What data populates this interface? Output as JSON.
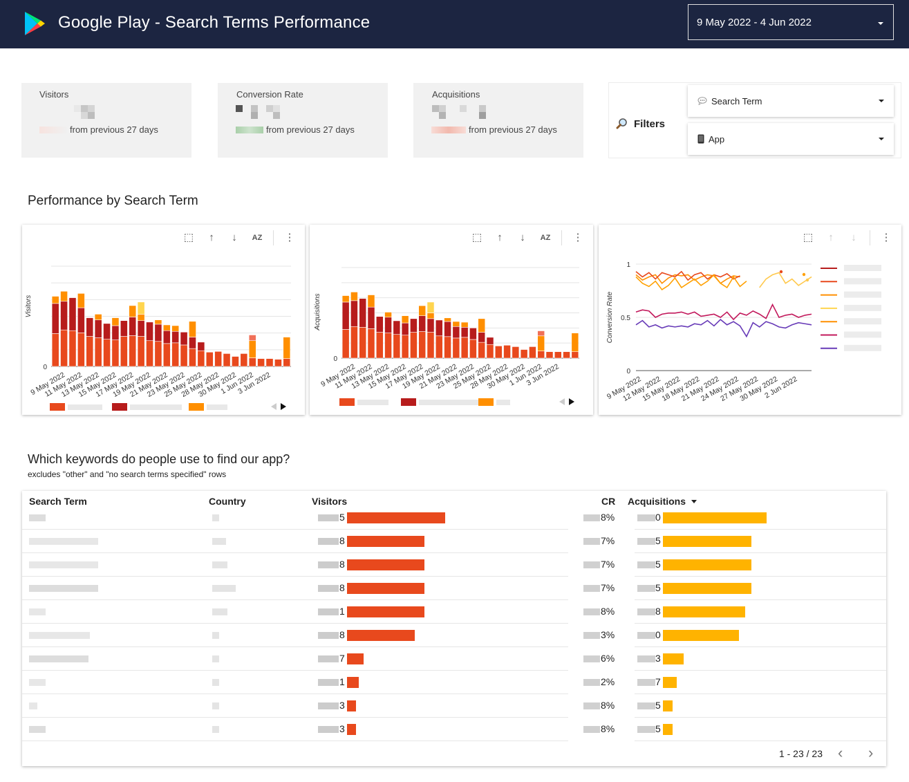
{
  "header": {
    "title": "Google Play - Search Terms Performance",
    "date_range": "9 May 2022 - 4 Jun 2022"
  },
  "kpis": [
    {
      "label": "Visitors",
      "delta_text": "from previous 27 days"
    },
    {
      "label": "Conversion Rate",
      "delta_text": "from previous 27 days"
    },
    {
      "label": "Acquisitions",
      "delta_text": "from previous 27 days"
    }
  ],
  "filters": {
    "label": "Filters",
    "search_term": "Search Term",
    "app": "App"
  },
  "section1": {
    "title": "Performance by Search Term"
  },
  "section2": {
    "title": "Which keywords do people use to find our app?",
    "subtitle": "excludes \"other\" and \"no search terms specified\" rows"
  },
  "colors": {
    "s1": "#e8491d",
    "s2": "#b71c1c",
    "s3": "#ff8f00",
    "s4": "#ffd54f",
    "s5": "#f07058",
    "visitors_bar": "#e8491d",
    "acq_bar": "#ffb300",
    "header_bg": "#1c2541"
  },
  "chart_data": [
    {
      "type": "bar",
      "stacked": true,
      "ylabel": "Visitors",
      "x_tick_labels": [
        "9 May 2022",
        "11 May 2022",
        "13 May 2022",
        "15 May 2022",
        "17 May 2022",
        "19 May 2022",
        "21 May 2022",
        "23 May 2022",
        "25 May 2022",
        "28 May 2022",
        "30 May 2022",
        "1 Jun 2022",
        "3 Jun 2022"
      ],
      "y_tick_labels": [
        "0"
      ],
      "series": [
        {
          "values": [
            46,
            51,
            50,
            47,
            42,
            40,
            38,
            37,
            42,
            43,
            42,
            36,
            35,
            32,
            33,
            30,
            25,
            22,
            20,
            21,
            18,
            14,
            18,
            12,
            11,
            11,
            10,
            11
          ]
        },
        {
          "values": [
            42,
            40,
            46,
            35,
            26,
            25,
            22,
            20,
            22,
            26,
            22,
            26,
            24,
            18,
            16,
            18,
            16,
            12,
            0,
            0,
            0,
            0,
            0,
            0,
            0,
            0,
            0,
            0
          ]
        },
        {
          "values": [
            10,
            14,
            0,
            20,
            0,
            8,
            0,
            11,
            0,
            16,
            9,
            0,
            6,
            8,
            8,
            0,
            22,
            0,
            0,
            0,
            0,
            0,
            0,
            24,
            0,
            0,
            0,
            30
          ]
        },
        {
          "values": [
            0,
            0,
            0,
            0,
            0,
            0,
            0,
            0,
            0,
            0,
            17,
            0,
            0,
            0,
            0,
            0,
            0,
            0,
            0,
            0,
            0,
            0,
            0,
            0,
            0,
            0,
            0,
            0
          ]
        },
        {
          "values": [
            0,
            0,
            0,
            0,
            0,
            0,
            0,
            0,
            0,
            0,
            0,
            0,
            0,
            0,
            0,
            0,
            0,
            0,
            0,
            0,
            0,
            0,
            0,
            8,
            0,
            0,
            0,
            0
          ]
        }
      ]
    },
    {
      "type": "bar",
      "stacked": true,
      "ylabel": "Acquisitions",
      "x_tick_labels": [
        "9 May 2022",
        "11 May 2022",
        "13 May 2022",
        "15 May 2022",
        "17 May 2022",
        "19 May 2022",
        "21 May 2022",
        "23 May 2022",
        "25 May 2022",
        "28 May 2022",
        "30 May 2022",
        "1 Jun 2022",
        "3 Jun 2022"
      ],
      "y_tick_labels": [
        "0"
      ],
      "series": [
        {
          "values": [
            40,
            44,
            43,
            41,
            36,
            35,
            33,
            32,
            36,
            37,
            36,
            31,
            30,
            28,
            29,
            26,
            22,
            19,
            17,
            18,
            16,
            12,
            16,
            10,
            9,
            9,
            9,
            9
          ]
        },
        {
          "values": [
            38,
            36,
            40,
            30,
            22,
            22,
            19,
            17,
            19,
            22,
            19,
            22,
            21,
            16,
            14,
            16,
            14,
            10,
            0,
            0,
            0,
            0,
            0,
            0,
            0,
            0,
            0,
            0
          ]
        },
        {
          "values": [
            9,
            12,
            0,
            17,
            0,
            7,
            0,
            10,
            0,
            14,
            8,
            0,
            5,
            7,
            7,
            0,
            19,
            0,
            0,
            0,
            0,
            0,
            0,
            21,
            0,
            0,
            0,
            26
          ]
        },
        {
          "values": [
            0,
            0,
            0,
            0,
            0,
            0,
            0,
            0,
            0,
            0,
            15,
            0,
            0,
            0,
            0,
            0,
            0,
            0,
            0,
            0,
            0,
            0,
            0,
            0,
            0,
            0,
            0,
            0
          ]
        },
        {
          "values": [
            0,
            0,
            0,
            0,
            0,
            0,
            0,
            0,
            0,
            0,
            0,
            0,
            0,
            0,
            0,
            0,
            0,
            0,
            0,
            0,
            0,
            0,
            0,
            7,
            0,
            0,
            0,
            0
          ]
        }
      ]
    },
    {
      "type": "line",
      "ylabel": "Conversion Rate",
      "x_tick_labels": [
        "9 May 2022",
        "12 May 2022",
        "15 May 2022",
        "18 May 2022",
        "21 May 2022",
        "24 May 2022",
        "27 May 2022",
        "30 May 2022",
        "2 Jun 2022"
      ],
      "y_tick_labels": [
        "1",
        "0.5",
        "0"
      ],
      "ylim": [
        0,
        1
      ],
      "series": [
        {
          "values": [
            0.9,
            0.85,
            0.88,
            0.9,
            0.82,
            0.87,
            0.9,
            0.89,
            0.9,
            0.85,
            0.88,
            0.9,
            0.89,
            0.82,
            0.86,
            0.89,
            0.88,
            null,
            null,
            null,
            null,
            null,
            null,
            null,
            null,
            null,
            null,
            null
          ]
        },
        {
          "values": [
            0.93,
            0.88,
            0.92,
            0.86,
            0.92,
            0.9,
            0.88,
            0.93,
            0.85,
            0.9,
            0.92,
            0.86,
            0.9,
            0.88,
            0.91,
            0.86,
            0.89,
            null,
            null,
            null,
            null,
            null,
            null,
            null,
            null,
            null,
            null,
            null
          ]
        },
        {
          "values": [
            0.88,
            0.82,
            0.79,
            0.84,
            0.76,
            0.8,
            0.87,
            0.78,
            0.82,
            0.86,
            0.8,
            0.84,
            0.9,
            0.82,
            0.78,
            0.88,
            0.79,
            0.84,
            null,
            null,
            null,
            null,
            null,
            null,
            null,
            null,
            null,
            null
          ]
        },
        {
          "values": [
            null,
            null,
            null,
            null,
            null,
            null,
            null,
            null,
            null,
            null,
            null,
            null,
            null,
            null,
            null,
            null,
            null,
            null,
            null,
            0.78,
            0.86,
            0.9,
            0.92,
            0.82,
            0.86,
            0.8,
            0.84,
            0.88
          ]
        },
        {
          "values": [
            0.55,
            0.57,
            0.56,
            0.5,
            0.53,
            0.54,
            0.54,
            0.55,
            0.53,
            0.55,
            0.51,
            0.52,
            0.53,
            0.5,
            0.55,
            0.48,
            0.54,
            0.52,
            0.56,
            0.53,
            0.49,
            0.62,
            0.5,
            0.52,
            0.53,
            0.5,
            0.52,
            0.53
          ]
        },
        {
          "values": [
            0.43,
            0.47,
            0.41,
            0.43,
            0.4,
            0.42,
            0.41,
            0.42,
            0.41,
            0.44,
            0.43,
            0.47,
            0.42,
            0.48,
            0.43,
            0.46,
            0.42,
            0.32,
            0.45,
            0.41,
            0.46,
            0.44,
            0.41,
            0.4,
            0.43,
            0.45,
            0.44,
            0.43
          ]
        }
      ]
    }
  ],
  "table": {
    "headers": {
      "search_term": "Search Term",
      "country": "Country",
      "visitors": "Visitors",
      "cr": "CR",
      "acquisitions": "Acquisitions"
    },
    "rows": [
      {
        "visitors_tail": "5",
        "visitors_frac": 1.0,
        "cr_tail": "8%",
        "acq_tail": "0",
        "acq_frac": 1.0
      },
      {
        "visitors_tail": "8",
        "visitors_frac": 0.79,
        "cr_tail": "7%",
        "acq_tail": "5",
        "acq_frac": 0.85
      },
      {
        "visitors_tail": "8",
        "visitors_frac": 0.79,
        "cr_tail": "7%",
        "acq_tail": "5",
        "acq_frac": 0.85
      },
      {
        "visitors_tail": "8",
        "visitors_frac": 0.79,
        "cr_tail": "7%",
        "acq_tail": "5",
        "acq_frac": 0.85
      },
      {
        "visitors_tail": "1",
        "visitors_frac": 0.79,
        "cr_tail": "8%",
        "acq_tail": "8",
        "acq_frac": 0.79
      },
      {
        "visitors_tail": "8",
        "visitors_frac": 0.69,
        "cr_tail": "3%",
        "acq_tail": "0",
        "acq_frac": 0.73
      },
      {
        "visitors_tail": "7",
        "visitors_frac": 0.17,
        "cr_tail": "6%",
        "acq_tail": "3",
        "acq_frac": 0.2
      },
      {
        "visitors_tail": "1",
        "visitors_frac": 0.12,
        "cr_tail": "2%",
        "acq_tail": "7",
        "acq_frac": 0.13
      },
      {
        "visitors_tail": "3",
        "visitors_frac": 0.09,
        "cr_tail": "8%",
        "acq_tail": "5",
        "acq_frac": 0.09
      },
      {
        "visitors_tail": "3",
        "visitors_frac": 0.09,
        "cr_tail": "8%",
        "acq_tail": "5",
        "acq_frac": 0.09
      }
    ],
    "pagination": "1 - 23 / 23"
  },
  "icons": {
    "search": "magnifier-icon",
    "speech": "speech-bubble-icon",
    "phone": "phone-icon"
  }
}
